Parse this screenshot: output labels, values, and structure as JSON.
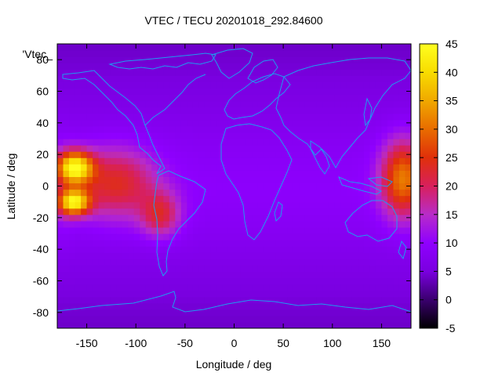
{
  "chart_data": {
    "type": "heatmap",
    "title": "VTEC / TECU 20201018_292.84600",
    "xlabel": "Longitude / deg",
    "ylabel": "Latitude / deg",
    "series_label": "'Vtec_",
    "xlim": [
      -180,
      180
    ],
    "ylim": [
      -90,
      90
    ],
    "x_ticks": [
      -150,
      -100,
      -50,
      0,
      50,
      100,
      150
    ],
    "y_ticks": [
      -80,
      -60,
      -40,
      -20,
      0,
      20,
      40,
      60,
      80
    ],
    "colorbar": {
      "range": [
        -5,
        45
      ],
      "ticks": [
        -5,
        0,
        5,
        10,
        15,
        20,
        25,
        30,
        35,
        40,
        45
      ],
      "palette": [
        "#000000",
        "#3a006e",
        "#7a00e0",
        "#8f00ff",
        "#b82cc8",
        "#d8205c",
        "#e0300a",
        "#e86c00",
        "#f0a800",
        "#f8dc00",
        "#ffff20"
      ]
    },
    "background_vtec": 8,
    "features": [
      {
        "name": "pacific-crest-north",
        "lon": -162,
        "lat": 12,
        "vtec": 42
      },
      {
        "name": "pacific-crest-south",
        "lon": -163,
        "lat": -10,
        "vtec": 40
      },
      {
        "name": "eastern-pacific-band",
        "lon": -120,
        "lat": 2,
        "vtec": 27
      },
      {
        "name": "south-america-tail",
        "lon": -75,
        "lat": -18,
        "vtec": 24
      },
      {
        "name": "west-pacific-band",
        "lon": 172,
        "lat": 5,
        "vtec": 30
      }
    ],
    "coastline_color": "#1f9cf0"
  }
}
